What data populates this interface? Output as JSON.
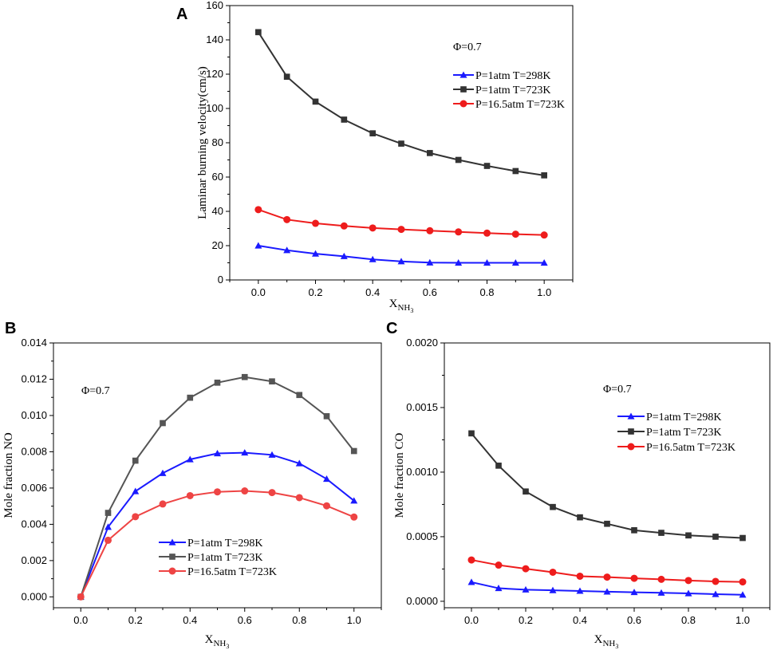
{
  "chart_data": [
    {
      "panel": "A",
      "type": "line",
      "title": "",
      "xlabel": "X",
      "xlabel_sub": "NH",
      "xlabel_subsub": "3",
      "ylabel": "Laminar burning velocity(cm/s)",
      "annotation": "Φ=0.7",
      "xlim": [
        -0.1,
        1.1
      ],
      "ylim": [
        0,
        160
      ],
      "xticks": [
        "0.0",
        "0.2",
        "0.4",
        "0.6",
        "0.8",
        "1.0"
      ],
      "yticks": [
        "0",
        "20",
        "40",
        "60",
        "80",
        "100",
        "120",
        "140",
        "160"
      ],
      "x": [
        0.0,
        0.1,
        0.2,
        0.3,
        0.4,
        0.5,
        0.6,
        0.7,
        0.8,
        0.9,
        1.0
      ],
      "series": [
        {
          "name": "P=1atm T=298K",
          "color": "#1a1aff",
          "marker": "triangle",
          "values": [
            20,
            17.3,
            15.3,
            13.8,
            12,
            10.8,
            10.1,
            10,
            10,
            10,
            10
          ]
        },
        {
          "name": "P=1atm T=723K",
          "color": "#333333",
          "marker": "square",
          "values": [
            144.5,
            118.5,
            104,
            93.5,
            85.5,
            79.5,
            74,
            70,
            66.5,
            63.5,
            61
          ]
        },
        {
          "name": "P=16.5atm T=723K",
          "color": "#ee1c1c",
          "marker": "circle",
          "values": [
            41,
            35.2,
            33,
            31.5,
            30.3,
            29.5,
            28.7,
            28,
            27.3,
            26.7,
            26.2
          ]
        }
      ]
    },
    {
      "panel": "B",
      "type": "line",
      "title": "",
      "xlabel": "X",
      "xlabel_sub": "NH",
      "xlabel_subsub": "3",
      "ylabel": "Mole fraction NO",
      "annotation": "Φ=0.7",
      "xlim": [
        -0.1,
        1.1
      ],
      "ylim": [
        -0.0006,
        0.014
      ],
      "xticks": [
        "0.0",
        "0.2",
        "0.4",
        "0.6",
        "0.8",
        "1.0"
      ],
      "yticks": [
        "0.000",
        "0.002",
        "0.004",
        "0.006",
        "0.008",
        "0.010",
        "0.012",
        "0.014"
      ],
      "x": [
        0.0,
        0.1,
        0.2,
        0.3,
        0.4,
        0.5,
        0.6,
        0.7,
        0.8,
        0.9,
        1.0
      ],
      "series": [
        {
          "name": "P=1atm T=298K",
          "color": "#1a1aff",
          "marker": "triangle",
          "values": [
            0.0,
            0.00385,
            0.00582,
            0.00682,
            0.00758,
            0.00791,
            0.00795,
            0.00783,
            0.00736,
            0.0065,
            0.0053
          ]
        },
        {
          "name": "P=1atm T=723K",
          "color": "#555555",
          "marker": "square",
          "values": [
            0.0,
            0.00463,
            0.00751,
            0.00958,
            0.01098,
            0.01181,
            0.01212,
            0.01188,
            0.01113,
            0.00996,
            0.00804
          ]
        },
        {
          "name": "P=16.5atm T=723K",
          "color": "#ee4444",
          "marker": "circle",
          "values": [
            0.0,
            0.00312,
            0.00442,
            0.00512,
            0.00558,
            0.00579,
            0.00584,
            0.00575,
            0.00547,
            0.00502,
            0.0044
          ]
        }
      ]
    },
    {
      "panel": "C",
      "type": "line",
      "title": "",
      "xlabel": "X",
      "xlabel_sub": "NH",
      "xlabel_subsub": "3",
      "ylabel": "Mole fraction CO",
      "annotation": "Φ=0.7",
      "xlim": [
        -0.1,
        1.1
      ],
      "ylim": [
        -5e-05,
        0.002
      ],
      "xticks": [
        "0.0",
        "0.2",
        "0.4",
        "0.6",
        "0.8",
        "1.0"
      ],
      "yticks": [
        "0.0000",
        "0.0005",
        "0.0010",
        "0.0015",
        "0.0020"
      ],
      "x": [
        0.0,
        0.1,
        0.2,
        0.3,
        0.4,
        0.5,
        0.6,
        0.7,
        0.8,
        0.9,
        1.0
      ],
      "series": [
        {
          "name": "P=1atm T=298K",
          "color": "#1a1aff",
          "marker": "triangle",
          "values": [
            0.000148,
            0.000101,
            9e-05,
            8.5e-05,
            8e-05,
            7.4e-05,
            7e-05,
            6.6e-05,
            6.1e-05,
            5.5e-05,
            5e-05
          ]
        },
        {
          "name": "P=1atm T=723K",
          "color": "#333333",
          "marker": "square",
          "values": [
            0.0013,
            0.00105,
            0.00085,
            0.00073,
            0.00065,
            0.0006,
            0.00055,
            0.00053,
            0.00051,
            0.0005,
            0.00049
          ]
        },
        {
          "name": "P=16.5atm T=723K",
          "color": "#ee1c1c",
          "marker": "circle",
          "values": [
            0.00032,
            0.00028,
            0.000252,
            0.000225,
            0.000194,
            0.000187,
            0.000178,
            0.00017,
            0.000161,
            0.000154,
            0.00015
          ]
        }
      ]
    }
  ]
}
